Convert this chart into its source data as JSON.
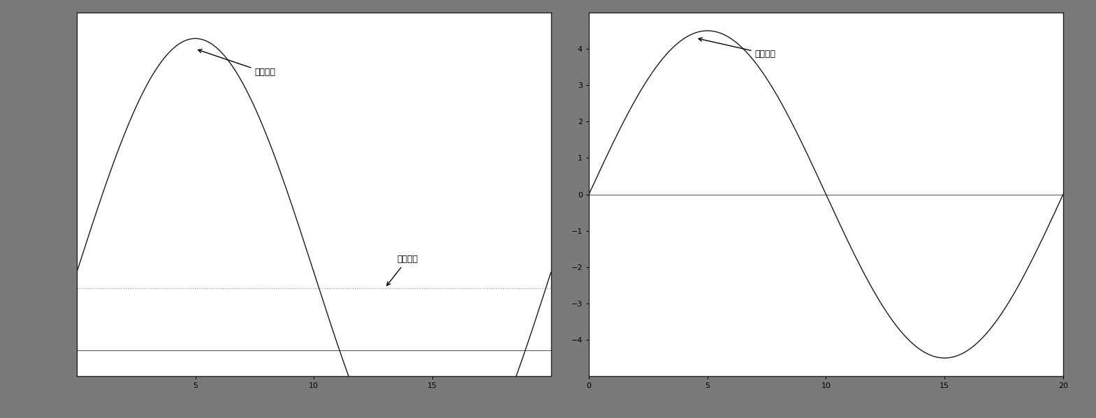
{
  "xlim": [
    0,
    20
  ],
  "ylim_left": [
    -4.5,
    4.5
  ],
  "ylim_right": [
    -5,
    5
  ],
  "yticks_left": [],
  "yticks_right": [
    -4,
    -3,
    -2,
    -1,
    0,
    1,
    2,
    3,
    4
  ],
  "xticks_left": [
    5,
    10,
    15
  ],
  "xticks_right": [
    0,
    5,
    10,
    15,
    20
  ],
  "amplitude": 4.5,
  "bias_level": -0.3,
  "annotation_sc": "短路電流",
  "annotation_bias": "偵備電流",
  "line_color": "#1a1a1a",
  "bg_color": "#ffffff",
  "outer_bg": "#7a7a7a",
  "dotted_color": "#888888",
  "annotation_fontsize": 9,
  "tick_fontsize": 8
}
